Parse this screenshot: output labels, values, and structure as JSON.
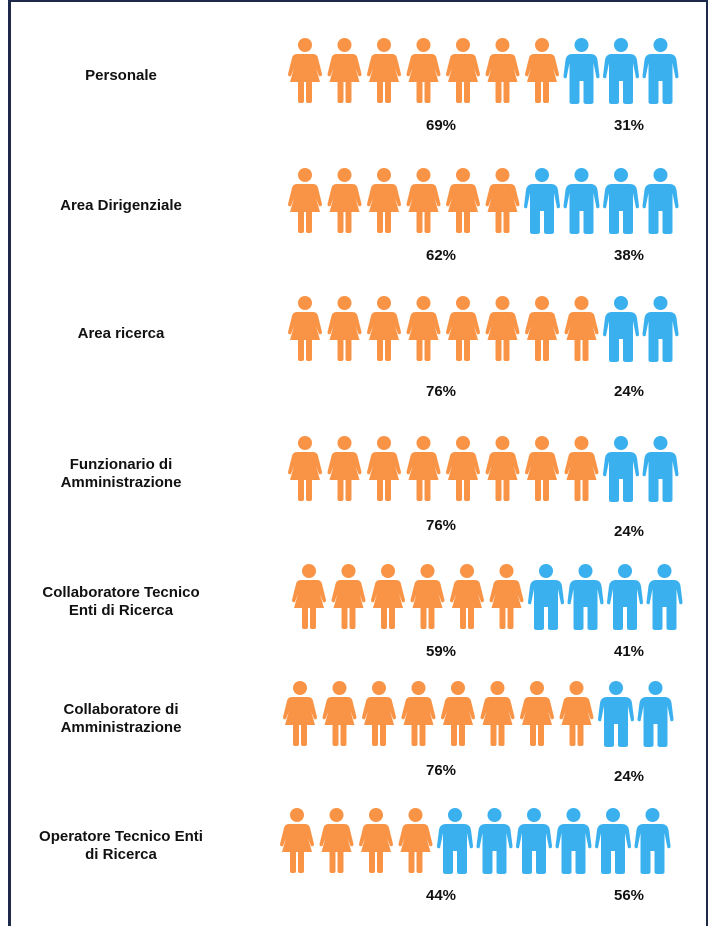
{
  "chart_data": {
    "type": "pictogram",
    "categories": [
      "Personale",
      "Area Dirigenziale",
      "Area ricerca",
      "Funzionario di\nAmministrazione",
      "Collaboratore Tecnico\nEnti di Ricerca",
      "Collaboratore di\nAmministrazione",
      "Operatore Tecnico Enti\ndi Ricerca"
    ],
    "series": [
      {
        "color": "#f99447",
        "icon": "female",
        "values": [
          69,
          62,
          76,
          76,
          59,
          76,
          44
        ],
        "value_labels": [
          "69%",
          "62%",
          "76%",
          "76%",
          "59%",
          "76%",
          "44%"
        ],
        "icons": [
          7,
          6,
          8,
          8,
          6,
          8,
          4
        ]
      },
      {
        "color": "#3ab0ef",
        "icon": "male",
        "values": [
          31,
          38,
          24,
          24,
          41,
          24,
          56
        ],
        "value_labels": [
          "31%",
          "38%",
          "24%",
          "24%",
          "41%",
          "24%",
          "56%"
        ],
        "icons": [
          3,
          4,
          2,
          2,
          4,
          2,
          6
        ]
      }
    ]
  }
}
